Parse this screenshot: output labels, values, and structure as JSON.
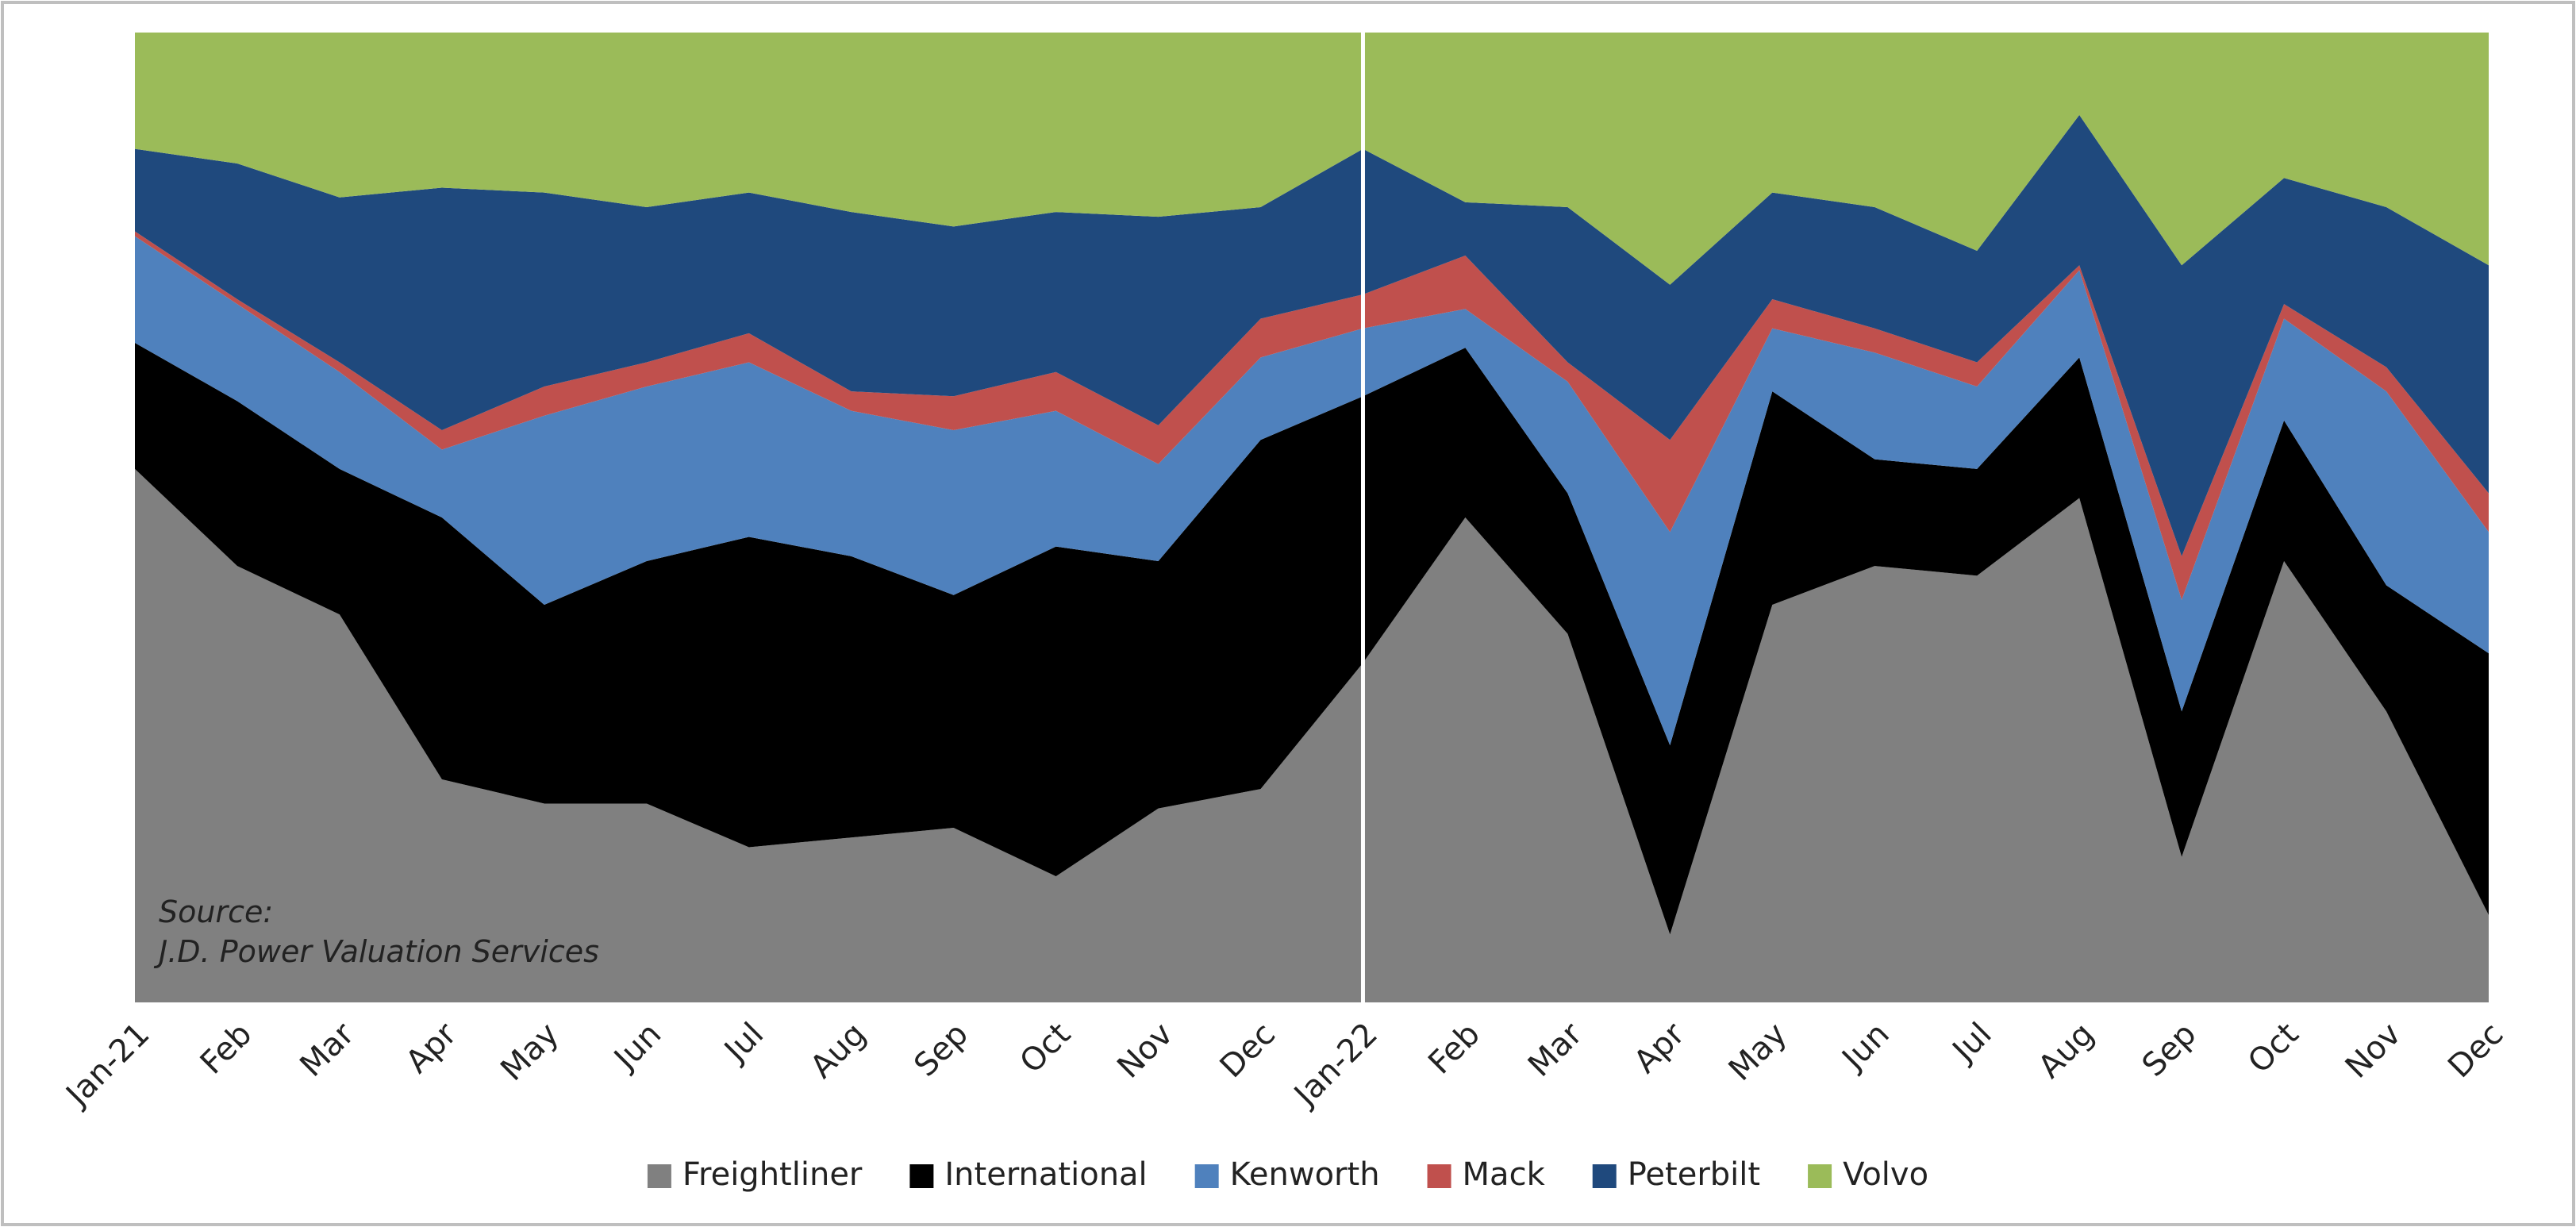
{
  "chart_data": {
    "type": "area_stacked",
    "categories": [
      "Jan-21",
      "Feb",
      "Mar",
      "Apr",
      "May",
      "Jun",
      "Jul",
      "Aug",
      "Sep",
      "Oct",
      "Nov",
      "Dec",
      "Jan-22",
      "Feb",
      "Mar",
      "Apr",
      "May",
      "Jun",
      "Jul",
      "Aug",
      "Sep",
      "Oct",
      "Nov",
      "Dec"
    ],
    "series": [
      {
        "name": "Freightliner",
        "color": "#808080",
        "values": [
          55,
          45,
          40,
          23,
          20.5,
          20.5,
          16,
          17,
          18,
          13,
          20,
          22,
          35,
          50,
          38,
          7,
          41,
          45,
          44,
          52,
          15,
          45.5,
          30,
          9
        ]
      },
      {
        "name": "International",
        "color": "#000000",
        "values": [
          13,
          17,
          15,
          27,
          20.5,
          25,
          32,
          29,
          24,
          34,
          25.5,
          36,
          27.5,
          17.5,
          14.5,
          19.5,
          22,
          11,
          11,
          14.5,
          15,
          14.5,
          13,
          27
        ]
      },
      {
        "name": "Kenworth",
        "color": "#4f81bd",
        "values": [
          11,
          10,
          10,
          7,
          19.5,
          18,
          18,
          15,
          17,
          14,
          10,
          8.5,
          7,
          4,
          11.5,
          22,
          6.5,
          11,
          8.5,
          9,
          11.5,
          10.5,
          20,
          12.5
        ]
      },
      {
        "name": "Mack",
        "color": "#c0504d",
        "values": [
          0.5,
          0.5,
          1,
          2,
          3,
          2.5,
          3,
          2,
          3.5,
          4,
          4,
          4,
          3.5,
          5.5,
          2,
          9.5,
          3,
          2.5,
          2.5,
          0.5,
          4.5,
          1.5,
          2.5,
          4
        ]
      },
      {
        "name": "Peterbilt",
        "color": "#1f497d",
        "values": [
          8.5,
          14,
          17,
          25,
          20,
          16,
          14.5,
          18.5,
          17.5,
          16.5,
          21.5,
          11.5,
          15,
          5.5,
          16,
          16,
          11,
          12.5,
          11.5,
          15.5,
          30,
          13,
          16.5,
          23.5
        ]
      },
      {
        "name": "Volvo",
        "color": "#9bbb59",
        "values": [
          12,
          13.5,
          17,
          16,
          16.5,
          18,
          16.5,
          18.5,
          20,
          18.5,
          19,
          18,
          12,
          17.5,
          18,
          26,
          16.5,
          18,
          22.5,
          8.5,
          24,
          15,
          18,
          24
        ]
      }
    ],
    "ylim": [
      0,
      100
    ],
    "annotations": [
      "Source:",
      "J.D. Power Valuation Services"
    ],
    "legend": "bottom"
  }
}
